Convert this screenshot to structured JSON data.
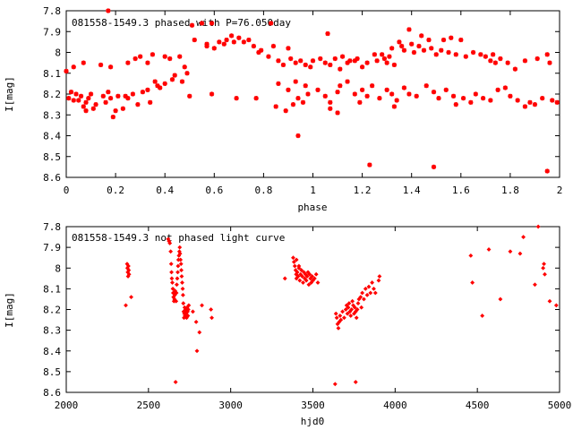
{
  "chart_data": [
    {
      "type": "scatter",
      "title": "081558-1549.3 phased with P=76.050day",
      "xlabel": "phase",
      "ylabel": "I[mag]",
      "xlim": [
        0,
        2
      ],
      "ylim": [
        7.8,
        8.6
      ],
      "y_inverted": true,
      "x_ticks": [
        "0",
        "0.2",
        "0.4",
        "0.6",
        "0.8",
        "1",
        "1.2",
        "1.4",
        "1.6",
        "1.8",
        "2"
      ],
      "y_ticks": [
        "7.8",
        "7.9",
        "8",
        "8.1",
        "8.2",
        "8.3",
        "8.4",
        "8.5",
        "8.6"
      ],
      "marker": "star",
      "color": "#ff0000",
      "points": [
        [
          0.17,
          7.8
        ],
        [
          0.51,
          7.87
        ],
        [
          0.55,
          7.86
        ],
        [
          0.59,
          7.86
        ],
        [
          0.83,
          7.86
        ],
        [
          1.06,
          7.91
        ],
        [
          1.39,
          7.89
        ],
        [
          1.44,
          7.92
        ],
        [
          1.47,
          7.94
        ],
        [
          1.53,
          7.94
        ],
        [
          1.56,
          7.93
        ],
        [
          1.6,
          7.94
        ],
        [
          0.52,
          7.94
        ],
        [
          0.57,
          7.96
        ],
        [
          0.62,
          7.95
        ],
        [
          0.65,
          7.94
        ],
        [
          0.67,
          7.92
        ],
        [
          0.68,
          7.95
        ],
        [
          0.72,
          7.95
        ],
        [
          0.76,
          7.97
        ],
        [
          0.79,
          7.99
        ],
        [
          0.84,
          7.97
        ],
        [
          0.9,
          7.98
        ],
        [
          0.57,
          7.97
        ],
        [
          0.6,
          7.98
        ],
        [
          0.64,
          7.96
        ],
        [
          0.7,
          7.93
        ],
        [
          0.74,
          7.94
        ],
        [
          0.78,
          8.0
        ],
        [
          0.82,
          8.02
        ],
        [
          1.32,
          7.98
        ],
        [
          1.35,
          7.95
        ],
        [
          1.36,
          7.97
        ],
        [
          1.37,
          7.99
        ],
        [
          1.4,
          7.96
        ],
        [
          1.41,
          8.0
        ],
        [
          1.43,
          7.97
        ],
        [
          1.45,
          7.99
        ],
        [
          1.48,
          7.98
        ],
        [
          1.5,
          8.01
        ],
        [
          1.52,
          7.99
        ],
        [
          1.55,
          8.0
        ],
        [
          1.58,
          8.01
        ],
        [
          1.62,
          8.02
        ],
        [
          1.65,
          8.0
        ],
        [
          1.68,
          8.01
        ],
        [
          1.7,
          8.02
        ],
        [
          1.72,
          8.04
        ],
        [
          1.73,
          8.01
        ],
        [
          1.74,
          8.05
        ],
        [
          1.76,
          8.03
        ],
        [
          1.79,
          8.05
        ],
        [
          1.82,
          8.08
        ],
        [
          1.86,
          8.04
        ],
        [
          1.91,
          8.03
        ],
        [
          1.95,
          8.01
        ],
        [
          1.96,
          8.05
        ],
        [
          1.12,
          8.02
        ],
        [
          1.15,
          8.04
        ],
        [
          1.18,
          8.03
        ],
        [
          1.2,
          8.07
        ],
        [
          1.22,
          8.05
        ],
        [
          1.25,
          8.01
        ],
        [
          1.26,
          8.04
        ],
        [
          1.28,
          8.01
        ],
        [
          1.29,
          8.03
        ],
        [
          1.3,
          8.05
        ],
        [
          1.31,
          8.02
        ],
        [
          1.33,
          8.06
        ],
        [
          1.0,
          8.04
        ],
        [
          1.03,
          8.03
        ],
        [
          1.05,
          8.05
        ],
        [
          1.07,
          8.06
        ],
        [
          1.09,
          8.03
        ],
        [
          1.11,
          8.08
        ],
        [
          1.14,
          8.05
        ],
        [
          1.17,
          8.04
        ],
        [
          0.86,
          8.04
        ],
        [
          0.88,
          8.06
        ],
        [
          0.91,
          8.03
        ],
        [
          0.93,
          8.05
        ],
        [
          0.95,
          8.04
        ],
        [
          0.97,
          8.06
        ],
        [
          0.99,
          8.07
        ],
        [
          0.0,
          8.09
        ],
        [
          0.03,
          8.07
        ],
        [
          0.07,
          8.05
        ],
        [
          0.14,
          8.06
        ],
        [
          0.18,
          8.07
        ],
        [
          0.25,
          8.05
        ],
        [
          0.28,
          8.03
        ],
        [
          0.3,
          8.02
        ],
        [
          0.33,
          8.05
        ],
        [
          0.35,
          8.01
        ],
        [
          0.4,
          8.02
        ],
        [
          0.42,
          8.03
        ],
        [
          0.46,
          8.02
        ],
        [
          0.48,
          8.07
        ],
        [
          0.49,
          8.1
        ],
        [
          0.43,
          8.13
        ],
        [
          0.44,
          8.11
        ],
        [
          0.47,
          8.14
        ],
        [
          0.4,
          8.15
        ],
        [
          0.38,
          8.17
        ],
        [
          0.37,
          8.16
        ],
        [
          0.36,
          8.14
        ],
        [
          0.33,
          8.18
        ],
        [
          0.31,
          8.19
        ],
        [
          0.27,
          8.2
        ],
        [
          0.24,
          8.21
        ],
        [
          0.21,
          8.21
        ],
        [
          0.18,
          8.22
        ],
        [
          0.17,
          8.19
        ],
        [
          0.16,
          8.24
        ],
        [
          0.15,
          8.21
        ],
        [
          0.1,
          8.2
        ],
        [
          0.09,
          8.22
        ],
        [
          0.08,
          8.24
        ],
        [
          0.07,
          8.26
        ],
        [
          0.06,
          8.21
        ],
        [
          0.05,
          8.23
        ],
        [
          0.04,
          8.2
        ],
        [
          0.03,
          8.23
        ],
        [
          0.02,
          8.19
        ],
        [
          0.01,
          8.22
        ],
        [
          0.12,
          8.25
        ],
        [
          0.11,
          8.27
        ],
        [
          0.08,
          8.28
        ],
        [
          0.2,
          8.28
        ],
        [
          0.23,
          8.27
        ],
        [
          0.19,
          8.31
        ],
        [
          0.25,
          8.22
        ],
        [
          0.29,
          8.25
        ],
        [
          0.34,
          8.24
        ],
        [
          0.5,
          8.21
        ],
        [
          0.59,
          8.2
        ],
        [
          0.69,
          8.22
        ],
        [
          0.77,
          8.22
        ],
        [
          0.85,
          8.26
        ],
        [
          0.89,
          8.28
        ],
        [
          0.92,
          8.25
        ],
        [
          0.94,
          8.22
        ],
        [
          0.96,
          8.24
        ],
        [
          0.98,
          8.2
        ],
        [
          0.86,
          8.15
        ],
        [
          0.9,
          8.18
        ],
        [
          0.93,
          8.14
        ],
        [
          0.97,
          8.16
        ],
        [
          1.02,
          8.18
        ],
        [
          1.05,
          8.21
        ],
        [
          1.07,
          8.24
        ],
        [
          1.1,
          8.19
        ],
        [
          1.11,
          8.16
        ],
        [
          1.14,
          8.14
        ],
        [
          1.17,
          8.2
        ],
        [
          1.2,
          8.18
        ],
        [
          1.22,
          8.21
        ],
        [
          1.24,
          8.16
        ],
        [
          1.27,
          8.22
        ],
        [
          1.3,
          8.18
        ],
        [
          1.32,
          8.2
        ],
        [
          1.34,
          8.23
        ],
        [
          1.37,
          8.17
        ],
        [
          1.39,
          8.2
        ],
        [
          1.42,
          8.21
        ],
        [
          1.46,
          8.16
        ],
        [
          1.49,
          8.19
        ],
        [
          1.51,
          8.22
        ],
        [
          1.54,
          8.18
        ],
        [
          1.57,
          8.21
        ],
        [
          1.61,
          8.22
        ],
        [
          1.64,
          8.24
        ],
        [
          1.66,
          8.2
        ],
        [
          1.69,
          8.22
        ],
        [
          1.72,
          8.23
        ],
        [
          1.75,
          8.18
        ],
        [
          1.78,
          8.17
        ],
        [
          1.8,
          8.21
        ],
        [
          1.83,
          8.23
        ],
        [
          1.86,
          8.26
        ],
        [
          1.88,
          8.24
        ],
        [
          1.9,
          8.25
        ],
        [
          1.93,
          8.22
        ],
        [
          1.97,
          8.23
        ],
        [
          1.99,
          8.24
        ],
        [
          1.07,
          8.27
        ],
        [
          1.1,
          8.29
        ],
        [
          1.19,
          8.24
        ],
        [
          1.33,
          8.26
        ],
        [
          1.58,
          8.25
        ],
        [
          0.94,
          8.4
        ],
        [
          1.23,
          8.54
        ],
        [
          1.49,
          8.55
        ],
        [
          1.95,
          8.57
        ]
      ]
    },
    {
      "type": "scatter",
      "title": "081558-1549.3 not phased light curve",
      "xlabel": "hjd0",
      "ylabel": "I[mag]",
      "xlim": [
        2000,
        5000
      ],
      "ylim": [
        7.8,
        8.6
      ],
      "y_inverted": true,
      "x_ticks": [
        "2000",
        "2500",
        "3000",
        "3500",
        "4000",
        "4500",
        "5000"
      ],
      "y_ticks": [
        "7.8",
        "7.9",
        "8",
        "8.1",
        "8.2",
        "8.3",
        "8.4",
        "8.5",
        "8.6"
      ],
      "marker": "diamond",
      "color": "#ff0000",
      "points": [
        [
          2370,
          7.98
        ],
        [
          2372,
          8.0
        ],
        [
          2374,
          8.02
        ],
        [
          2376,
          8.04
        ],
        [
          2378,
          7.99
        ],
        [
          2380,
          8.01
        ],
        [
          2382,
          8.03
        ],
        [
          2362,
          8.18
        ],
        [
          2395,
          8.14
        ],
        [
          2620,
          7.86
        ],
        [
          2625,
          7.87
        ],
        [
          2630,
          7.88
        ],
        [
          2635,
          7.92
        ],
        [
          2638,
          7.98
        ],
        [
          2640,
          8.02
        ],
        [
          2642,
          8.05
        ],
        [
          2645,
          8.07
        ],
        [
          2648,
          8.1
        ],
        [
          2650,
          8.12
        ],
        [
          2652,
          8.14
        ],
        [
          2655,
          8.16
        ],
        [
          2658,
          8.15
        ],
        [
          2660,
          8.13
        ],
        [
          2662,
          8.11
        ],
        [
          2668,
          8.16
        ],
        [
          2670,
          8.12
        ],
        [
          2672,
          8.08
        ],
        [
          2675,
          8.05
        ],
        [
          2678,
          8.02
        ],
        [
          2680,
          7.99
        ],
        [
          2682,
          7.96
        ],
        [
          2685,
          7.94
        ],
        [
          2688,
          7.92
        ],
        [
          2690,
          7.9
        ],
        [
          2692,
          7.93
        ],
        [
          2695,
          7.96
        ],
        [
          2698,
          7.98
        ],
        [
          2700,
          8.01
        ],
        [
          2702,
          8.04
        ],
        [
          2705,
          8.07
        ],
        [
          2708,
          8.1
        ],
        [
          2710,
          8.13
        ],
        [
          2712,
          8.17
        ],
        [
          2714,
          8.21
        ],
        [
          2716,
          8.24
        ],
        [
          2718,
          8.22
        ],
        [
          2720,
          8.19
        ],
        [
          2722,
          8.23
        ],
        [
          2725,
          8.2
        ],
        [
          2728,
          8.22
        ],
        [
          2730,
          8.21
        ],
        [
          2732,
          8.24
        ],
        [
          2735,
          8.19
        ],
        [
          2738,
          8.21
        ],
        [
          2740,
          8.23
        ],
        [
          2742,
          8.2
        ],
        [
          2745,
          8.18
        ],
        [
          2770,
          8.21
        ],
        [
          2790,
          8.26
        ],
        [
          2810,
          8.31
        ],
        [
          2825,
          8.18
        ],
        [
          2880,
          8.2
        ],
        [
          2885,
          8.24
        ],
        [
          2795,
          8.4
        ],
        [
          2665,
          8.55
        ],
        [
          3330,
          8.05
        ],
        [
          3380,
          7.95
        ],
        [
          3385,
          7.97
        ],
        [
          3390,
          7.99
        ],
        [
          3395,
          8.01
        ],
        [
          3398,
          8.03
        ],
        [
          3400,
          8.05
        ],
        [
          3405,
          8.02
        ],
        [
          3410,
          8.04
        ],
        [
          3415,
          8.0
        ],
        [
          3420,
          8.06
        ],
        [
          3425,
          8.03
        ],
        [
          3430,
          8.01
        ],
        [
          3435,
          8.04
        ],
        [
          3440,
          8.07
        ],
        [
          3445,
          8.02
        ],
        [
          3450,
          8.05
        ],
        [
          3455,
          8.03
        ],
        [
          3460,
          8.06
        ],
        [
          3465,
          8.04
        ],
        [
          3470,
          8.02
        ],
        [
          3475,
          8.08
        ],
        [
          3480,
          8.03
        ],
        [
          3485,
          8.05
        ],
        [
          3490,
          8.07
        ],
        [
          3495,
          8.04
        ],
        [
          3500,
          8.06
        ],
        [
          3510,
          8.05
        ],
        [
          3520,
          8.03
        ],
        [
          3530,
          8.07
        ],
        [
          3415,
          7.99
        ],
        [
          3400,
          7.96
        ],
        [
          3640,
          8.22
        ],
        [
          3645,
          8.24
        ],
        [
          3650,
          8.27
        ],
        [
          3655,
          8.29
        ],
        [
          3660,
          8.26
        ],
        [
          3665,
          8.23
        ],
        [
          3670,
          8.25
        ],
        [
          3680,
          8.21
        ],
        [
          3690,
          8.24
        ],
        [
          3700,
          8.2
        ],
        [
          3705,
          8.18
        ],
        [
          3710,
          8.22
        ],
        [
          3715,
          8.19
        ],
        [
          3720,
          8.17
        ],
        [
          3725,
          8.21
        ],
        [
          3730,
          8.23
        ],
        [
          3735,
          8.2
        ],
        [
          3740,
          8.16
        ],
        [
          3745,
          8.18
        ],
        [
          3750,
          8.22
        ],
        [
          3755,
          8.19
        ],
        [
          3760,
          8.21
        ],
        [
          3765,
          8.24
        ],
        [
          3770,
          8.2
        ],
        [
          3775,
          8.17
        ],
        [
          3780,
          8.15
        ],
        [
          3790,
          8.14
        ],
        [
          3795,
          8.19
        ],
        [
          3800,
          8.12
        ],
        [
          3810,
          8.15
        ],
        [
          3820,
          8.1
        ],
        [
          3830,
          8.13
        ],
        [
          3840,
          8.09
        ],
        [
          3850,
          8.12
        ],
        [
          3860,
          8.07
        ],
        [
          3870,
          8.1
        ],
        [
          3880,
          8.12
        ],
        [
          3900,
          8.06
        ],
        [
          3905,
          8.04
        ],
        [
          3635,
          8.56
        ],
        [
          3760,
          8.55
        ],
        [
          4460,
          7.94
        ],
        [
          4470,
          8.07
        ],
        [
          4530,
          8.23
        ],
        [
          4570,
          7.91
        ],
        [
          4640,
          8.15
        ],
        [
          4700,
          7.92
        ],
        [
          4760,
          7.93
        ],
        [
          4780,
          7.85
        ],
        [
          4850,
          8.08
        ],
        [
          4870,
          7.8
        ],
        [
          4900,
          8.0
        ],
        [
          4905,
          7.98
        ],
        [
          4910,
          8.03
        ],
        [
          4940,
          8.16
        ],
        [
          4980,
          8.18
        ]
      ]
    }
  ]
}
